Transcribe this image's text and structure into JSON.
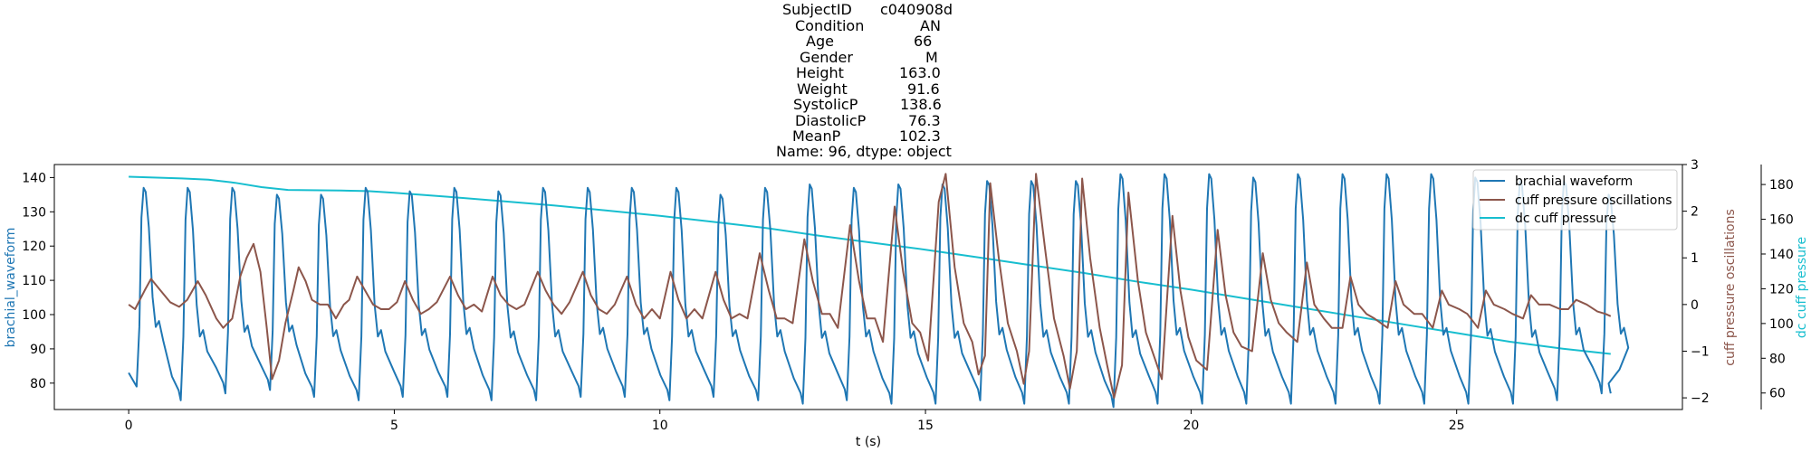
{
  "title": {
    "rows": [
      {
        "key": "SubjectID",
        "value": "c040908d"
      },
      {
        "key": "Condition",
        "value": "AN"
      },
      {
        "key": "Age",
        "value": "66"
      },
      {
        "key": "Gender",
        "value": "M"
      },
      {
        "key": "Height",
        "value": "163.0"
      },
      {
        "key": "Weight",
        "value": "91.6"
      },
      {
        "key": "SystolicP",
        "value": "138.6"
      },
      {
        "key": "DiastolicP",
        "value": "76.3"
      },
      {
        "key": "MeanP",
        "value": "102.3"
      }
    ],
    "footer": "Name: 96, dtype: object"
  },
  "chart_data": {
    "type": "line",
    "xlabel": "t (s)",
    "xlim": [
      -1.4,
      29.25
    ],
    "xticks": [
      0,
      5,
      10,
      15,
      20,
      25
    ],
    "axes": {
      "left": {
        "label": "brachial_waveform",
        "color": "#1f77b4",
        "ylim": [
          72.3,
          143.8
        ],
        "ticks": [
          80,
          90,
          100,
          110,
          120,
          130,
          140
        ]
      },
      "right1": {
        "label": "cuff pressure oscillations",
        "color": "#8c564b",
        "ylim": [
          -2.25,
          3.0
        ],
        "ticks": [
          -2,
          -1,
          0,
          1,
          2,
          3
        ]
      },
      "right2": {
        "label": "dc cuff pressure",
        "color": "#17becf",
        "ylim": [
          50.5,
          191.5
        ],
        "ticks": [
          60,
          80,
          100,
          120,
          140,
          160,
          180
        ]
      }
    },
    "legend": {
      "placement": "top-right"
    },
    "series": [
      {
        "name": "brachial waveform",
        "axis": "left",
        "color": "#1f77b4",
        "type": "pulse",
        "t_start": 0.0,
        "t_end": 27.9,
        "start_value": 83,
        "end_value": 77,
        "beats": [
          {
            "t": 0.15,
            "min": 79,
            "max": 137
          },
          {
            "t": 0.98,
            "min": 75,
            "max": 137
          },
          {
            "t": 1.82,
            "min": 77,
            "max": 137
          },
          {
            "t": 2.66,
            "min": 78,
            "max": 135
          },
          {
            "t": 3.49,
            "min": 76,
            "max": 135
          },
          {
            "t": 4.33,
            "min": 75,
            "max": 137
          },
          {
            "t": 5.16,
            "min": 76,
            "max": 136
          },
          {
            "t": 6.0,
            "min": 76,
            "max": 137
          },
          {
            "t": 6.83,
            "min": 75,
            "max": 136
          },
          {
            "t": 7.67,
            "min": 75,
            "max": 137
          },
          {
            "t": 8.51,
            "min": 76,
            "max": 137
          },
          {
            "t": 9.34,
            "min": 76,
            "max": 137
          },
          {
            "t": 10.18,
            "min": 75,
            "max": 137
          },
          {
            "t": 11.01,
            "min": 76,
            "max": 135
          },
          {
            "t": 11.85,
            "min": 75,
            "max": 137
          },
          {
            "t": 12.69,
            "min": 74,
            "max": 138
          },
          {
            "t": 13.52,
            "min": 75,
            "max": 137
          },
          {
            "t": 14.36,
            "min": 74,
            "max": 138
          },
          {
            "t": 15.19,
            "min": 74,
            "max": 138
          },
          {
            "t": 16.03,
            "min": 75,
            "max": 139
          },
          {
            "t": 16.86,
            "min": 74,
            "max": 139
          },
          {
            "t": 17.7,
            "min": 74,
            "max": 139
          },
          {
            "t": 18.54,
            "min": 73,
            "max": 141
          },
          {
            "t": 19.37,
            "min": 74,
            "max": 141
          },
          {
            "t": 20.21,
            "min": 74,
            "max": 141
          },
          {
            "t": 21.04,
            "min": 74,
            "max": 140
          },
          {
            "t": 21.88,
            "min": 74,
            "max": 141
          },
          {
            "t": 22.72,
            "min": 74,
            "max": 141
          },
          {
            "t": 23.55,
            "min": 74,
            "max": 141
          },
          {
            "t": 24.39,
            "min": 74,
            "max": 141
          },
          {
            "t": 25.22,
            "min": 74,
            "max": 140
          },
          {
            "t": 26.06,
            "min": 74,
            "max": 139
          },
          {
            "t": 26.89,
            "min": 75,
            "max": 139
          },
          {
            "t": 27.73,
            "min": 77,
            "max": 135
          }
        ]
      },
      {
        "name": "cuff pressure oscillations",
        "axis": "right1",
        "color": "#8c564b",
        "type": "points",
        "points": [
          [
            0.0,
            0.0
          ],
          [
            0.12,
            -0.1
          ],
          [
            0.3,
            0.3
          ],
          [
            0.42,
            0.55
          ],
          [
            0.6,
            0.3
          ],
          [
            0.78,
            0.05
          ],
          [
            0.95,
            -0.05
          ],
          [
            1.1,
            0.1
          ],
          [
            1.3,
            0.5
          ],
          [
            1.45,
            0.2
          ],
          [
            1.65,
            -0.3
          ],
          [
            1.78,
            -0.5
          ],
          [
            1.95,
            -0.3
          ],
          [
            2.1,
            0.6
          ],
          [
            2.22,
            1.0
          ],
          [
            2.35,
            1.3
          ],
          [
            2.48,
            0.7
          ],
          [
            2.6,
            -0.5
          ],
          [
            2.7,
            -1.6
          ],
          [
            2.83,
            -1.2
          ],
          [
            2.95,
            -0.4
          ],
          [
            3.1,
            0.3
          ],
          [
            3.2,
            0.8
          ],
          [
            3.33,
            0.5
          ],
          [
            3.45,
            0.1
          ],
          [
            3.6,
            0.0
          ],
          [
            3.75,
            0.0
          ],
          [
            3.9,
            -0.3
          ],
          [
            4.05,
            0.0
          ],
          [
            4.15,
            0.1
          ],
          [
            4.3,
            0.6
          ],
          [
            4.45,
            0.3
          ],
          [
            4.6,
            0.0
          ],
          [
            4.75,
            -0.1
          ],
          [
            4.9,
            -0.1
          ],
          [
            5.05,
            0.05
          ],
          [
            5.2,
            0.5
          ],
          [
            5.35,
            0.1
          ],
          [
            5.5,
            -0.2
          ],
          [
            5.65,
            -0.1
          ],
          [
            5.8,
            0.05
          ],
          [
            6.05,
            0.6
          ],
          [
            6.2,
            0.2
          ],
          [
            6.35,
            -0.1
          ],
          [
            6.5,
            0.0
          ],
          [
            6.65,
            -0.15
          ],
          [
            6.85,
            0.6
          ],
          [
            7.0,
            0.2
          ],
          [
            7.15,
            0.0
          ],
          [
            7.3,
            -0.1
          ],
          [
            7.45,
            0.0
          ],
          [
            7.7,
            0.7
          ],
          [
            7.85,
            0.3
          ],
          [
            8.0,
            0.0
          ],
          [
            8.15,
            -0.2
          ],
          [
            8.3,
            0.05
          ],
          [
            8.55,
            0.7
          ],
          [
            8.7,
            0.2
          ],
          [
            8.85,
            -0.1
          ],
          [
            9.0,
            -0.2
          ],
          [
            9.15,
            0.0
          ],
          [
            9.38,
            0.6
          ],
          [
            9.55,
            0.0
          ],
          [
            9.7,
            -0.3
          ],
          [
            9.85,
            -0.1
          ],
          [
            10.0,
            -0.3
          ],
          [
            10.2,
            0.7
          ],
          [
            10.35,
            0.1
          ],
          [
            10.5,
            -0.3
          ],
          [
            10.65,
            -0.1
          ],
          [
            10.8,
            -0.3
          ],
          [
            11.05,
            0.7
          ],
          [
            11.2,
            0.1
          ],
          [
            11.35,
            -0.3
          ],
          [
            11.5,
            -0.2
          ],
          [
            11.65,
            -0.3
          ],
          [
            11.88,
            1.1
          ],
          [
            12.05,
            0.3
          ],
          [
            12.2,
            -0.3
          ],
          [
            12.35,
            -0.3
          ],
          [
            12.5,
            -0.4
          ],
          [
            12.72,
            1.4
          ],
          [
            12.88,
            0.5
          ],
          [
            13.05,
            -0.2
          ],
          [
            13.2,
            -0.2
          ],
          [
            13.35,
            -0.5
          ],
          [
            13.58,
            1.7
          ],
          [
            13.75,
            0.5
          ],
          [
            13.9,
            -0.3
          ],
          [
            14.05,
            -0.3
          ],
          [
            14.2,
            -0.8
          ],
          [
            14.42,
            2.1
          ],
          [
            14.58,
            0.7
          ],
          [
            14.75,
            -0.4
          ],
          [
            14.9,
            -0.6
          ],
          [
            15.05,
            -1.2
          ],
          [
            15.25,
            2.2
          ],
          [
            15.38,
            2.8
          ],
          [
            15.55,
            0.8
          ],
          [
            15.72,
            -0.4
          ],
          [
            15.88,
            -0.8
          ],
          [
            16.0,
            -1.5
          ],
          [
            16.12,
            -1.1
          ],
          [
            16.22,
            2.6
          ],
          [
            16.38,
            1.0
          ],
          [
            16.55,
            -0.4
          ],
          [
            16.72,
            -1.0
          ],
          [
            16.85,
            -1.7
          ],
          [
            16.95,
            -1.0
          ],
          [
            17.08,
            2.8
          ],
          [
            17.25,
            1.2
          ],
          [
            17.42,
            -0.3
          ],
          [
            17.6,
            -1.1
          ],
          [
            17.72,
            -1.8
          ],
          [
            17.85,
            -1.0
          ],
          [
            17.95,
            2.7
          ],
          [
            18.1,
            1.0
          ],
          [
            18.28,
            -0.5
          ],
          [
            18.42,
            -1.3
          ],
          [
            18.55,
            -2.0
          ],
          [
            18.7,
            -1.3
          ],
          [
            18.82,
            2.4
          ],
          [
            19.0,
            0.5
          ],
          [
            19.15,
            -0.6
          ],
          [
            19.3,
            -1.1
          ],
          [
            19.45,
            -1.6
          ],
          [
            19.65,
            1.9
          ],
          [
            19.8,
            0.3
          ],
          [
            19.95,
            -0.7
          ],
          [
            20.1,
            -1.2
          ],
          [
            20.3,
            -1.4
          ],
          [
            20.5,
            1.6
          ],
          [
            20.65,
            0.2
          ],
          [
            20.8,
            -0.6
          ],
          [
            20.95,
            -0.9
          ],
          [
            21.15,
            -1.0
          ],
          [
            21.35,
            1.1
          ],
          [
            21.5,
            0.1
          ],
          [
            21.65,
            -0.4
          ],
          [
            21.8,
            -0.6
          ],
          [
            22.0,
            -0.8
          ],
          [
            22.18,
            0.9
          ],
          [
            22.32,
            0.0
          ],
          [
            22.5,
            -0.3
          ],
          [
            22.65,
            -0.5
          ],
          [
            22.85,
            -0.5
          ],
          [
            23.0,
            0.6
          ],
          [
            23.15,
            0.0
          ],
          [
            23.3,
            -0.2
          ],
          [
            23.45,
            -0.3
          ],
          [
            23.7,
            -0.5
          ],
          [
            23.85,
            0.5
          ],
          [
            24.0,
            0.0
          ],
          [
            24.2,
            -0.2
          ],
          [
            24.35,
            -0.2
          ],
          [
            24.55,
            -0.5
          ],
          [
            24.72,
            0.3
          ],
          [
            24.85,
            0.0
          ],
          [
            25.05,
            -0.1
          ],
          [
            25.2,
            -0.2
          ],
          [
            25.4,
            -0.5
          ],
          [
            25.55,
            0.3
          ],
          [
            25.7,
            0.0
          ],
          [
            25.9,
            -0.1
          ],
          [
            26.05,
            -0.2
          ],
          [
            26.25,
            -0.3
          ],
          [
            26.4,
            0.2
          ],
          [
            26.55,
            0.0
          ],
          [
            26.75,
            0.0
          ],
          [
            26.95,
            -0.1
          ],
          [
            27.1,
            -0.1
          ],
          [
            27.25,
            0.1
          ],
          [
            27.45,
            0.0
          ],
          [
            27.65,
            -0.15
          ],
          [
            27.8,
            -0.2
          ],
          [
            27.9,
            -0.25
          ]
        ]
      },
      {
        "name": "dc cuff pressure",
        "axis": "right2",
        "color": "#17becf",
        "type": "points",
        "points": [
          [
            0.0,
            184.5
          ],
          [
            1.0,
            183.5
          ],
          [
            1.5,
            182.8
          ],
          [
            2.0,
            181.0
          ],
          [
            2.5,
            178.5
          ],
          [
            3.0,
            176.9
          ],
          [
            4.0,
            176.5
          ],
          [
            4.5,
            176.2
          ],
          [
            5.0,
            175.2
          ],
          [
            6.0,
            173.0
          ],
          [
            7.0,
            170.5
          ],
          [
            8.0,
            168.0
          ],
          [
            9.0,
            165.0
          ],
          [
            10.0,
            162.0
          ],
          [
            11.0,
            158.5
          ],
          [
            12.0,
            155.0
          ],
          [
            13.0,
            150.5
          ],
          [
            14.0,
            146.5
          ],
          [
            15.0,
            142.5
          ],
          [
            16.0,
            138.0
          ],
          [
            17.0,
            133.5
          ],
          [
            18.0,
            129.0
          ],
          [
            19.0,
            124.0
          ],
          [
            20.0,
            119.5
          ],
          [
            21.0,
            114.5
          ],
          [
            22.0,
            109.5
          ],
          [
            23.0,
            104.5
          ],
          [
            24.0,
            99.5
          ],
          [
            25.0,
            94.5
          ],
          [
            26.0,
            89.5
          ],
          [
            27.0,
            85.5
          ],
          [
            27.9,
            82.5
          ]
        ]
      }
    ]
  }
}
